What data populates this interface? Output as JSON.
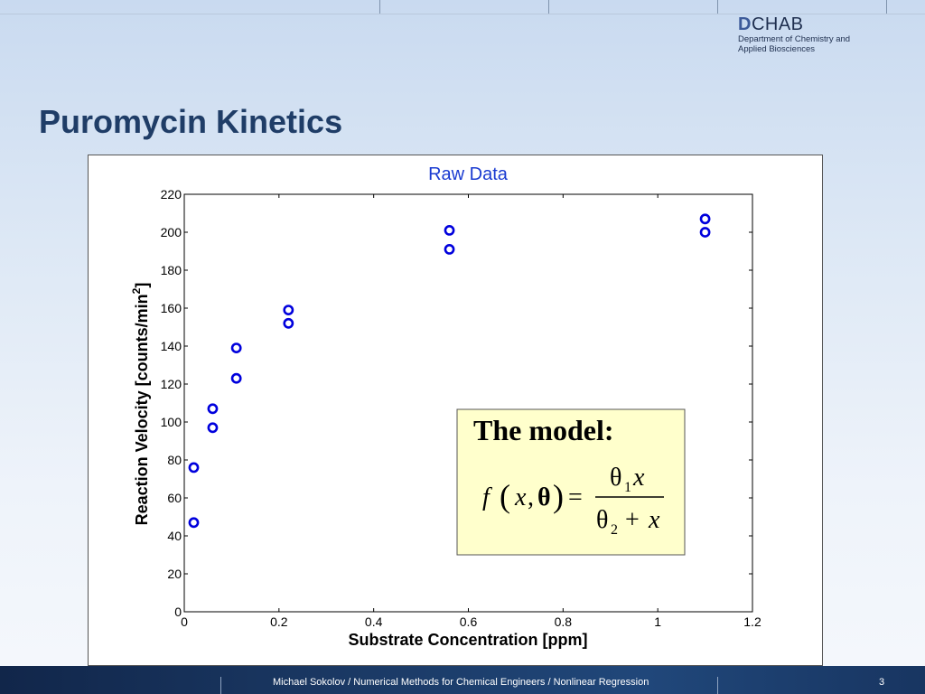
{
  "header": {
    "logo_mark": "D",
    "logo_name": "CHAB",
    "logo_line1": "Department of Chemistry and",
    "logo_line2": "Applied Biosciences"
  },
  "slide": {
    "title": "Puromycin Kinetics"
  },
  "model_box": {
    "heading": "The model:",
    "f": "f",
    "x": "x",
    "comma": ",",
    "theta_bold": "θ",
    "equals": "=",
    "theta": "θ",
    "sub1": "1",
    "sub2": "2",
    "plus": "+"
  },
  "chart_data": {
    "type": "scatter",
    "title": "Raw Data",
    "xlabel": "Substrate Concentration [ppm]",
    "ylabel": "Reaction Velocity [counts/min",
    "ylabel_sup": "2",
    "ylabel_end": "]",
    "xlim": [
      0,
      1.2
    ],
    "ylim": [
      0,
      220
    ],
    "xticks": [
      0,
      0.2,
      0.4,
      0.6,
      0.8,
      1,
      1.2
    ],
    "xtick_labels": [
      "0",
      "0.2",
      "0.4",
      "0.6",
      "0.8",
      "1",
      "1.2"
    ],
    "yticks": [
      0,
      20,
      40,
      60,
      80,
      100,
      120,
      140,
      160,
      180,
      200,
      220
    ],
    "ytick_labels": [
      "0",
      "20",
      "40",
      "60",
      "80",
      "100",
      "120",
      "140",
      "160",
      "180",
      "200",
      "220"
    ],
    "grid": false,
    "marker": "circle",
    "color": "#0000dd",
    "x": [
      0.02,
      0.02,
      0.06,
      0.06,
      0.11,
      0.11,
      0.22,
      0.22,
      0.56,
      0.56,
      1.1,
      1.1
    ],
    "y": [
      76,
      47,
      97,
      107,
      123,
      139,
      159,
      152,
      191,
      201,
      207,
      200
    ]
  },
  "footer": {
    "text": "Michael Sokolov / Numerical Methods for Chemical Engineers / Nonlinear Regression",
    "page": "3"
  }
}
